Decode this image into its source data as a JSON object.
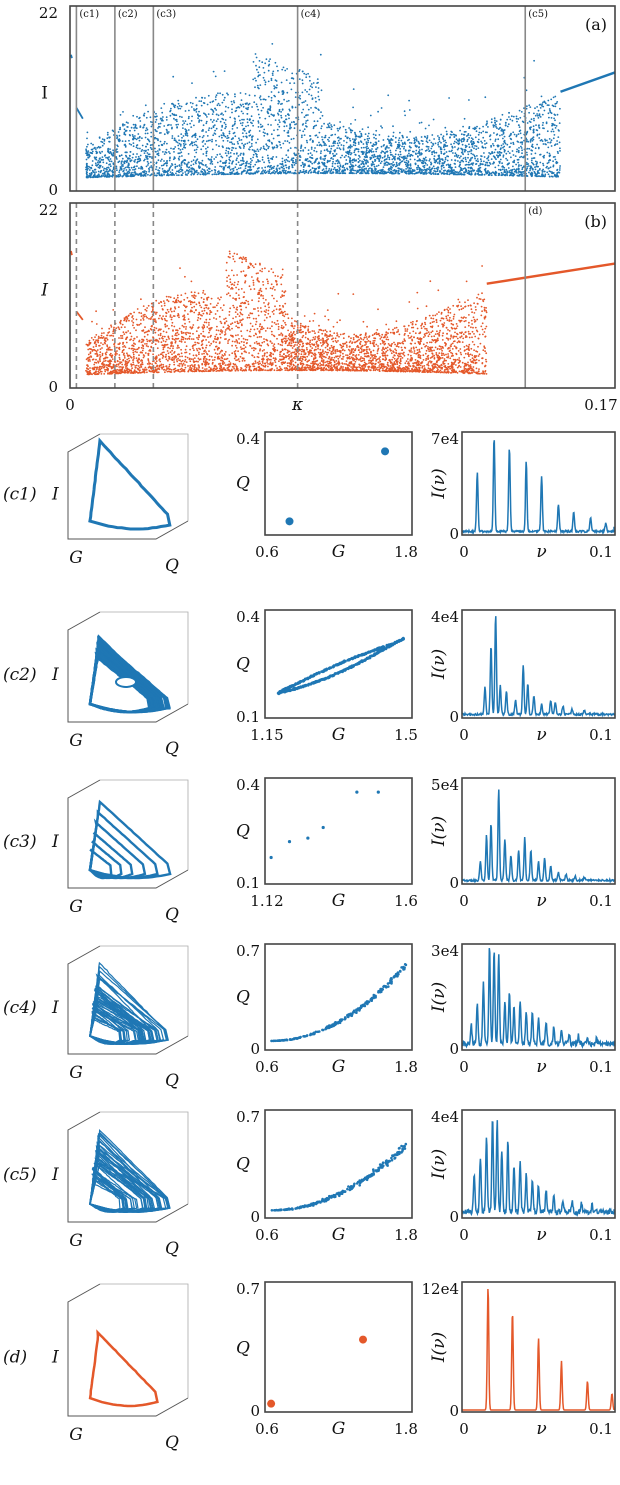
{
  "colors": {
    "blue": "#1f77b4",
    "orange": "#e4582a",
    "line": "#888888"
  },
  "chart_data": [
    {
      "id": "a",
      "type": "scatter",
      "panel_label": "(a)",
      "ylabel": "I",
      "ylim": [
        0,
        22
      ],
      "yticks": [
        "0",
        "22"
      ],
      "xlim": [
        0,
        0.17
      ],
      "xticks": [],
      "marker_lines": [
        {
          "x": 0.002,
          "label": "(c1)",
          "style": "solid"
        },
        {
          "x": 0.014,
          "label": "(c2)",
          "style": "solid"
        },
        {
          "x": 0.026,
          "label": "(c3)",
          "style": "solid"
        },
        {
          "x": 0.071,
          "label": "(c4)",
          "style": "solid"
        },
        {
          "x": 0.142,
          "label": "(c5)",
          "style": "solid"
        }
      ],
      "regime": {
        "chaos_start": 0.005,
        "chaos_end": 0.153,
        "periodic_end": [
          0.153,
          11.8,
          0.17,
          14.1
        ],
        "edge_lines": [
          [
            0.0003,
            16.2,
            0.0006,
            15.8
          ],
          [
            0.002,
            9.9,
            0.004,
            8.6
          ]
        ]
      }
    },
    {
      "id": "b",
      "type": "scatter",
      "panel_label": "(b)",
      "ylabel": "I",
      "ylim": [
        0,
        22
      ],
      "yticks": [
        "0",
        "22"
      ],
      "xlim": [
        0,
        0.17
      ],
      "xticks": [
        "0",
        "0.17"
      ],
      "xlabel": "κ",
      "marker_lines": [
        {
          "x": 0.002,
          "label": "",
          "style": "dashed"
        },
        {
          "x": 0.014,
          "label": "",
          "style": "dashed"
        },
        {
          "x": 0.026,
          "label": "",
          "style": "dashed"
        },
        {
          "x": 0.071,
          "label": "",
          "style": "dashed"
        },
        {
          "x": 0.142,
          "label": "(d)",
          "style": "solid"
        }
      ],
      "regime": {
        "chaos_start": 0.005,
        "chaos_end": 0.13,
        "periodic_end": [
          0.13,
          12.4,
          0.17,
          14.8
        ],
        "edge_lines": [
          [
            0.0003,
            16.3,
            0.0006,
            15.8
          ],
          [
            0.002,
            9.1,
            0.004,
            8.1
          ]
        ]
      }
    }
  ],
  "rows": [
    {
      "label": "(c1)",
      "color": "blue",
      "attractor": {
        "kind": "limit-cycle",
        "axes": [
          "I",
          "G",
          "Q"
        ]
      },
      "section": {
        "type": "scatter",
        "xlabel": "G",
        "ylabel": "Q",
        "xticks": [
          "0.6",
          "1.8"
        ],
        "yticks": [
          "0.4",
          ""
        ],
        "xlim": [
          0.6,
          1.8
        ],
        "ylim": [
          0,
          0.4
        ],
        "points": [
          [
            0.8,
            0.053
          ],
          [
            1.58,
            0.325
          ]
        ],
        "point_style": "large"
      },
      "spectrum": {
        "type": "line",
        "xlabel": "ν",
        "ylabel": "I(ν)",
        "ymax_label": "7e4",
        "ymin_label": "0",
        "xticks": [
          "0",
          "0.1"
        ],
        "xlim": [
          0,
          0.1
        ],
        "peaks": [
          [
            0.01,
            0.6
          ],
          [
            0.021,
            0.96
          ],
          [
            0.031,
            0.86
          ],
          [
            0.042,
            0.72
          ],
          [
            0.052,
            0.56
          ],
          [
            0.063,
            0.28
          ],
          [
            0.073,
            0.2
          ],
          [
            0.084,
            0.14
          ],
          [
            0.094,
            0.09
          ],
          [
            0.104,
            0.05
          ]
        ],
        "noise": 0.02
      }
    },
    {
      "label": "(c2)",
      "color": "blue",
      "attractor": {
        "kind": "torus",
        "axes": [
          "I",
          "G",
          "Q"
        ]
      },
      "section": {
        "type": "scatter",
        "xlabel": "G",
        "ylabel": "Q",
        "xticks": [
          "1.15",
          "1.5"
        ],
        "yticks": [
          "0.4",
          "0.1"
        ],
        "xlim": [
          1.15,
          1.5
        ],
        "ylim": [
          0.1,
          0.4
        ],
        "curve": {
          "from": [
            1.18,
            0.17
          ],
          "to": [
            1.48,
            0.32
          ],
          "width": 0.012
        },
        "point_style": "small"
      },
      "spectrum": {
        "type": "line",
        "xlabel": "ν",
        "ylabel": "I(ν)",
        "ymax_label": "4e4",
        "ymin_label": "0",
        "xticks": [
          "0",
          "0.1"
        ],
        "xlim": [
          0,
          0.1
        ],
        "peaks": [
          [
            0.015,
            0.26
          ],
          [
            0.019,
            0.66
          ],
          [
            0.022,
            0.96
          ],
          [
            0.025,
            0.28
          ],
          [
            0.029,
            0.22
          ],
          [
            0.035,
            0.14
          ],
          [
            0.04,
            0.48
          ],
          [
            0.043,
            0.3
          ],
          [
            0.047,
            0.18
          ],
          [
            0.052,
            0.1
          ],
          [
            0.058,
            0.14
          ],
          [
            0.061,
            0.12
          ],
          [
            0.066,
            0.08
          ],
          [
            0.072,
            0.05
          ],
          [
            0.08,
            0.04
          ]
        ],
        "noise": 0.02
      }
    },
    {
      "label": "(c3)",
      "color": "blue",
      "attractor": {
        "kind": "multi-loop",
        "axes": [
          "I",
          "G",
          "Q"
        ]
      },
      "section": {
        "type": "scatter",
        "xlabel": "G",
        "ylabel": "Q",
        "xticks": [
          "1.12",
          "1.6"
        ],
        "yticks": [
          "0.4",
          "0.1"
        ],
        "xlim": [
          1.12,
          1.6
        ],
        "ylim": [
          0.1,
          0.4
        ],
        "points": [
          [
            1.14,
            0.175
          ],
          [
            1.2,
            0.22
          ],
          [
            1.26,
            0.23
          ],
          [
            1.31,
            0.26
          ],
          [
            1.42,
            0.36
          ],
          [
            1.49,
            0.36
          ]
        ],
        "point_style": "small"
      },
      "spectrum": {
        "type": "line",
        "xlabel": "ν",
        "ylabel": "I(ν)",
        "ymax_label": "5e4",
        "ymin_label": "0",
        "xticks": [
          "0",
          "0.1"
        ],
        "xlim": [
          0,
          0.1
        ],
        "peaks": [
          [
            0.012,
            0.18
          ],
          [
            0.016,
            0.44
          ],
          [
            0.019,
            0.56
          ],
          [
            0.024,
            0.9
          ],
          [
            0.028,
            0.4
          ],
          [
            0.032,
            0.24
          ],
          [
            0.037,
            0.3
          ],
          [
            0.041,
            0.42
          ],
          [
            0.045,
            0.3
          ],
          [
            0.05,
            0.18
          ],
          [
            0.054,
            0.22
          ],
          [
            0.058,
            0.14
          ],
          [
            0.063,
            0.08
          ],
          [
            0.068,
            0.06
          ],
          [
            0.074,
            0.04
          ],
          [
            0.08,
            0.03
          ]
        ],
        "noise": 0.02
      }
    },
    {
      "label": "(c4)",
      "color": "blue",
      "attractor": {
        "kind": "chaotic",
        "axes": [
          "I",
          "G",
          "Q"
        ]
      },
      "section": {
        "type": "scatter",
        "xlabel": "G",
        "ylabel": "Q",
        "xticks": [
          "0.6",
          "1.8"
        ],
        "yticks": [
          "0.7",
          "0"
        ],
        "xlim": [
          0.6,
          1.8
        ],
        "ylim": [
          0,
          0.7
        ],
        "cloud": {
          "from": 0.65,
          "to": 1.75,
          "a": 0.06,
          "b": 0.5,
          "spread": 0.03,
          "n": 220
        },
        "point_style": "small"
      },
      "spectrum": {
        "type": "line",
        "xlabel": "ν",
        "ylabel": "I(ν)",
        "ymax_label": "3e4",
        "ymin_label": "0",
        "xticks": [
          "0",
          "0.1"
        ],
        "xlim": [
          0,
          0.1
        ],
        "peaks": [
          [
            0.006,
            0.2
          ],
          [
            0.01,
            0.38
          ],
          [
            0.014,
            0.6
          ],
          [
            0.018,
            0.98
          ],
          [
            0.021,
            0.92
          ],
          [
            0.024,
            0.86
          ],
          [
            0.028,
            0.4
          ],
          [
            0.031,
            0.52
          ],
          [
            0.034,
            0.36
          ],
          [
            0.038,
            0.42
          ],
          [
            0.042,
            0.34
          ],
          [
            0.046,
            0.3
          ],
          [
            0.05,
            0.24
          ],
          [
            0.055,
            0.2
          ],
          [
            0.06,
            0.16
          ],
          [
            0.065,
            0.12
          ],
          [
            0.07,
            0.1
          ],
          [
            0.076,
            0.08
          ],
          [
            0.082,
            0.06
          ],
          [
            0.088,
            0.05
          ]
        ],
        "noise": 0.05
      }
    },
    {
      "label": "(c5)",
      "color": "blue",
      "attractor": {
        "kind": "chaotic",
        "axes": [
          "I",
          "G",
          "Q"
        ]
      },
      "section": {
        "type": "scatter",
        "xlabel": "G",
        "ylabel": "Q",
        "xticks": [
          "0.6",
          "1.8"
        ],
        "yticks": [
          "0.7",
          "0"
        ],
        "xlim": [
          0.6,
          1.8
        ],
        "ylim": [
          0,
          0.7
        ],
        "cloud": {
          "from": 0.65,
          "to": 1.75,
          "a": 0.05,
          "b": 0.42,
          "spread": 0.035,
          "n": 240
        },
        "point_style": "small"
      },
      "spectrum": {
        "type": "line",
        "xlabel": "ν",
        "ylabel": "I(ν)",
        "ymax_label": "4e4",
        "ymin_label": "0",
        "xticks": [
          "0",
          "0.1"
        ],
        "xlim": [
          0,
          0.1
        ],
        "peaks": [
          [
            0.008,
            0.34
          ],
          [
            0.012,
            0.52
          ],
          [
            0.016,
            0.74
          ],
          [
            0.02,
            0.92
          ],
          [
            0.023,
            0.88
          ],
          [
            0.026,
            0.6
          ],
          [
            0.03,
            0.7
          ],
          [
            0.034,
            0.44
          ],
          [
            0.038,
            0.48
          ],
          [
            0.042,
            0.36
          ],
          [
            0.046,
            0.3
          ],
          [
            0.05,
            0.26
          ],
          [
            0.055,
            0.2
          ],
          [
            0.06,
            0.16
          ],
          [
            0.066,
            0.12
          ],
          [
            0.072,
            0.1
          ],
          [
            0.078,
            0.08
          ],
          [
            0.085,
            0.06
          ]
        ],
        "noise": 0.05
      }
    },
    {
      "label": "(d)",
      "color": "orange",
      "attractor": {
        "kind": "limit-cycle-small",
        "axes": [
          "I",
          "G",
          "Q"
        ]
      },
      "section": {
        "type": "scatter",
        "xlabel": "G",
        "ylabel": "Q",
        "xticks": [
          "0.6",
          "1.8"
        ],
        "yticks": [
          "0.7",
          "0"
        ],
        "xlim": [
          0.6,
          1.8
        ],
        "ylim": [
          0,
          0.7
        ],
        "points": [
          [
            0.65,
            0.045
          ],
          [
            1.4,
            0.39
          ]
        ],
        "point_style": "large"
      },
      "spectrum": {
        "type": "line",
        "xlabel": "ν",
        "ylabel": "I(ν)",
        "ymax_label": "12e4",
        "ymin_label": "0",
        "xticks": [
          "0",
          "0.1"
        ],
        "xlim": [
          0,
          0.1
        ],
        "peaks": [
          [
            0.017,
            0.98
          ],
          [
            0.033,
            0.78
          ],
          [
            0.05,
            0.57
          ],
          [
            0.065,
            0.39
          ],
          [
            0.082,
            0.23
          ],
          [
            0.098,
            0.13
          ]
        ],
        "noise": 0.0
      }
    }
  ]
}
